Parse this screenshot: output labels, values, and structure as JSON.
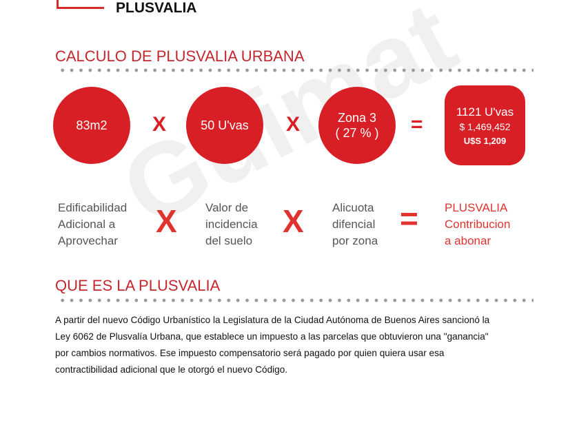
{
  "header": {
    "title": "PLUSVALIA"
  },
  "calc": {
    "heading": "CALCULO DE PLUSVALIA URBANA",
    "c1": "83m2",
    "c2": "50 U'vas",
    "c3a": "Zona 3",
    "c3b": "( 27 % )",
    "times": "X",
    "equals": "=",
    "result": {
      "uvas": "1121 U'vas",
      "pesos": "$ 1,469,452",
      "usd": "U$S 1,209"
    },
    "labels": {
      "l1": [
        "Edificabilidad",
        "Adicional a",
        "Aprovechar"
      ],
      "l2": [
        "Valor de",
        "incidencia",
        "del suelo"
      ],
      "l3": [
        "Alicuota",
        "difencial",
        "por zona"
      ],
      "l4": [
        "PLUSVALIA",
        "Contribucion",
        "a abonar"
      ]
    }
  },
  "que": {
    "heading": "QUE ES LA PLUSVALIA",
    "lines": [
      "A partir del nuevo Código Urbanístico la Legislatura de la Ciudad Autónoma de Buenos Aires sancionó la",
      "Ley 6062 de Plusvalía Urbana, que establece un impuesto a las parcelas que obtuvieron una \"ganancia\"",
      "por cambios normativos. Ese impuesto compensatorio será pagado por quien quiera usar esa",
      "contractibilidad adicional que le otorgó el nuevo Código."
    ]
  },
  "watermark": "Guimat propiedades",
  "colors": {
    "accent": "#d71f25"
  }
}
